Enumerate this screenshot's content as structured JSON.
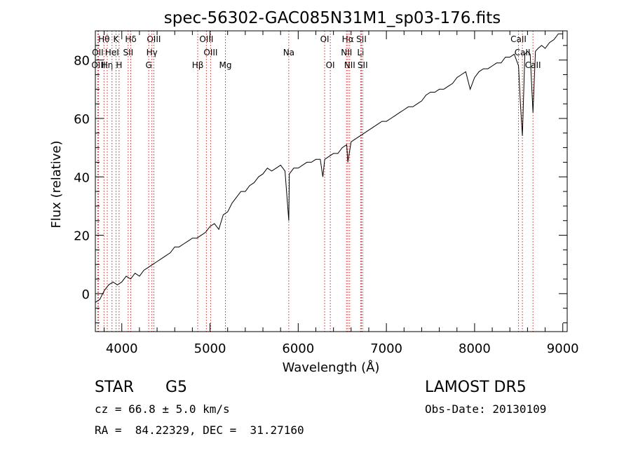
{
  "chart_data": {
    "type": "line",
    "title": "spec-56302-GAC085N31M1_sp03-176.fits",
    "xlabel": "Wavelength (Å)",
    "ylabel": "Flux (relative)",
    "xlim": [
      3700,
      9050
    ],
    "ylim": [
      -13,
      90
    ],
    "xticks": [
      4000,
      5000,
      6000,
      7000,
      8000,
      9000
    ],
    "yticks": [
      0,
      20,
      40,
      60,
      80
    ],
    "grid": false,
    "line_color": "#000000",
    "marker_color": "#b03030",
    "spectrum": {
      "x": [
        3700,
        3750,
        3800,
        3850,
        3900,
        3950,
        4000,
        4050,
        4100,
        4150,
        4200,
        4250,
        4300,
        4350,
        4400,
        4450,
        4500,
        4550,
        4600,
        4650,
        4700,
        4750,
        4800,
        4850,
        4900,
        4950,
        5000,
        5050,
        5100,
        5150,
        5200,
        5250,
        5300,
        5350,
        5400,
        5450,
        5500,
        5550,
        5600,
        5650,
        5700,
        5750,
        5800,
        5850,
        5893,
        5900,
        5950,
        6000,
        6050,
        6100,
        6150,
        6200,
        6250,
        6280,
        6300,
        6350,
        6400,
        6450,
        6500,
        6550,
        6563,
        6600,
        6650,
        6700,
        6750,
        6800,
        6850,
        6900,
        6950,
        7000,
        7050,
        7100,
        7150,
        7200,
        7250,
        7300,
        7350,
        7400,
        7450,
        7500,
        7550,
        7600,
        7650,
        7700,
        7750,
        7800,
        7850,
        7900,
        7950,
        8000,
        8050,
        8100,
        8150,
        8200,
        8250,
        8300,
        8350,
        8400,
        8450,
        8498,
        8520,
        8542,
        8570,
        8600,
        8630,
        8662,
        8690,
        8720,
        8760,
        8800,
        8850,
        8900,
        8950,
        9000
      ],
      "y": [
        -3,
        -2,
        1,
        3,
        4,
        3,
        4,
        6,
        5,
        7,
        6,
        8,
        9,
        10,
        11,
        12,
        13,
        14,
        16,
        16,
        17,
        18,
        19,
        19,
        20,
        21,
        23,
        24,
        22,
        27,
        28,
        31,
        33,
        35,
        35,
        37,
        38,
        40,
        41,
        43,
        42,
        43,
        44,
        42,
        25,
        41,
        43,
        43,
        44,
        45,
        45,
        46,
        46,
        40,
        46,
        47,
        48,
        48,
        50,
        51,
        45,
        52,
        53,
        54,
        55,
        56,
        57,
        58,
        59,
        59,
        60,
        61,
        62,
        63,
        64,
        64,
        65,
        66,
        68,
        69,
        69,
        70,
        70,
        71,
        72,
        74,
        75,
        76,
        70,
        74,
        76,
        77,
        77,
        78,
        79,
        79,
        81,
        81,
        82,
        78,
        65,
        54,
        82,
        83,
        82,
        62,
        83,
        84,
        85,
        84,
        86,
        87,
        89,
        89
      ]
    },
    "line_markers": [
      {
        "label": "Hθ",
        "wavelength": 3798,
        "row": 1
      },
      {
        "label": "OII",
        "wavelength": 3727,
        "row": 2
      },
      {
        "label": "OIII",
        "wavelength": 3735,
        "row": 3
      },
      {
        "label": "Hη",
        "wavelength": 3835,
        "row": 3
      },
      {
        "label": "K",
        "wavelength": 3934,
        "row": 1
      },
      {
        "label": "HeI",
        "wavelength": 3889,
        "row": 2
      },
      {
        "label": "H",
        "wavelength": 3969,
        "row": 3
      },
      {
        "label": "Hδ",
        "wavelength": 4102,
        "row": 1
      },
      {
        "label": "SII",
        "wavelength": 4072,
        "row": 2
      },
      {
        "label": "OIII",
        "wavelength": 4363,
        "row": 1
      },
      {
        "label": "Hγ",
        "wavelength": 4341,
        "row": 2
      },
      {
        "label": "G",
        "wavelength": 4305,
        "row": 3
      },
      {
        "label": "OIII",
        "wavelength": 4959,
        "row": 1
      },
      {
        "label": "OIII",
        "wavelength": 5007,
        "row": 2
      },
      {
        "label": "Hβ",
        "wavelength": 4861,
        "row": 3
      },
      {
        "label": "Mg",
        "wavelength": 5175,
        "row": 3
      },
      {
        "label": "Na",
        "wavelength": 5893,
        "row": 2
      },
      {
        "label": "OI",
        "wavelength": 6300,
        "row": 1
      },
      {
        "label": "OI",
        "wavelength": 6364,
        "row": 3
      },
      {
        "label": "Hα",
        "wavelength": 6563,
        "row": 1
      },
      {
        "label": "NII",
        "wavelength": 6548,
        "row": 2
      },
      {
        "label": "NII",
        "wavelength": 6584,
        "row": 3
      },
      {
        "label": "SII",
        "wavelength": 6717,
        "row": 1
      },
      {
        "label": "Li",
        "wavelength": 6708,
        "row": 2
      },
      {
        "label": "SII",
        "wavelength": 6731,
        "row": 3
      },
      {
        "label": "CaII",
        "wavelength": 8498,
        "row": 1
      },
      {
        "label": "CaII",
        "wavelength": 8542,
        "row": 2
      },
      {
        "label": "CaII",
        "wavelength": 8662,
        "row": 3
      }
    ]
  },
  "info": {
    "object_class": "STAR",
    "subclass": "G5",
    "survey": "LAMOST DR5",
    "cz": "cz = 66.8 ± 5.0 km/s",
    "obs_date": "Obs-Date: 20130109",
    "coords": "RA =  84.22329, DEC =  31.27160"
  }
}
